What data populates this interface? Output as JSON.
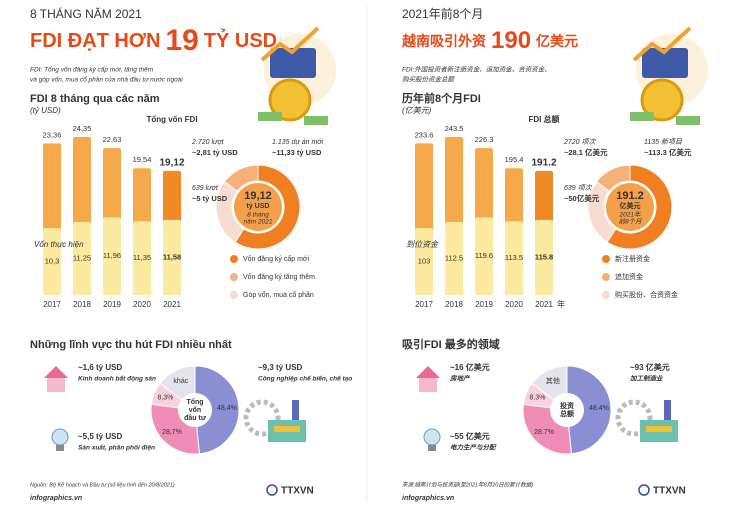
{
  "panels": [
    {
      "kicker": "8 THÁNG NĂM 2021",
      "headline": [
        "FDI ĐẠT HƠN",
        "19",
        "TỶ USD"
      ],
      "note": [
        "FDI: Tổng vốn đăng ký cấp mới, tăng thêm",
        "và góp vốn, mua cổ phần của nhà đầu tư nước ngoài"
      ],
      "bar_chart": {
        "type": "bar",
        "title": "FDI 8 tháng qua các năm",
        "unit": "(tỷ USD)",
        "categories": [
          "2017",
          "2018",
          "2019",
          "2020",
          "2021"
        ],
        "series": [
          {
            "name": "Tổng vốn FDI",
            "color": "#f5a94a",
            "values": [
              23.36,
              24.35,
              22.63,
              19.54,
              19.12
            ],
            "value_labels": [
              "23,36",
              "24,35",
              "22,63",
              "19,54",
              "19,12"
            ]
          },
          {
            "name": "Vốn thực hiện",
            "color": "#fbeaa0",
            "values": [
              10.3,
              11.25,
              11.96,
              11.35,
              11.58
            ],
            "value_labels": [
              "10,3",
              "11,25",
              "11,96",
              "11,35",
              "11,58"
            ]
          }
        ]
      },
      "donut": {
        "type": "pie",
        "categories": [
          "Vốn đăng ký cấp mới",
          "Vốn đăng ký tăng thêm",
          "Góp vốn, mua cổ phần"
        ],
        "colors": [
          "#f07f22",
          "#f7b079",
          "#f9dcd0"
        ],
        "values": [
          11.33,
          2.81,
          5
        ],
        "value_labels": [
          "~11,33 tỷ USD",
          "~2,81 tỷ USD",
          "~5 tỷ USD"
        ],
        "counts": [
          "1.135 dự án mới",
          "2.720 lượt",
          "639 lượt"
        ],
        "center": [
          "19,12",
          "tỷ USD",
          "8 tháng",
          "năm 2021"
        ]
      },
      "sector_chart": {
        "type": "pie",
        "title": "Những lĩnh vực thu hút FDI nhiều nhất",
        "categories": [
          "Công nghiệp chế biến, chế tạo",
          "Sản xuất, phân phối điện",
          "Kinh doanh bất động sản",
          "khác"
        ],
        "colors": [
          "#8a8fd4",
          "#f08db6",
          "#f9d1df",
          "#e4e4ee"
        ],
        "values": [
          48.4,
          28.7,
          8.3,
          14.6
        ],
        "value_labels": [
          "48,4%",
          "28,7%",
          "8,3%",
          null
        ],
        "amounts": [
          "~9,3 tỷ USD",
          "~5,5 tỷ USD",
          "~1,6 tỷ USD",
          null
        ],
        "center": [
          "Tổng",
          "vốn",
          "đầu tư"
        ]
      },
      "source": "Nguồn: Bộ Kế hoạch và Đầu tư (số liệu tính đến 20/8/2021)",
      "site": "infographics.vn",
      "logo": "TTXVN"
    },
    {
      "kicker": "2021年前8个月",
      "headline": [
        "越南吸引外资",
        "190",
        "亿美元"
      ],
      "note": [
        "FDI:外国投资者新注册资金、追加资金、合资资金、",
        "购买股份资金总额"
      ],
      "bar_chart": {
        "type": "bar",
        "title": "历年前8个月FDI",
        "unit": "(亿美元)",
        "categories": [
          "2017",
          "2018",
          "2019",
          "2020",
          "2021"
        ],
        "x_unit": "年",
        "series": [
          {
            "name": "FDI 总额",
            "color": "#f5a94a",
            "values": [
              233.6,
              243.5,
              226.3,
              195.4,
              191.2
            ]
          },
          {
            "name": "到位资金",
            "color": "#fbeaa0",
            "values": [
              103,
              112.5,
              119.6,
              113.5,
              115.8
            ]
          }
        ]
      },
      "donut": {
        "type": "pie",
        "categories": [
          "新注册资金",
          "追加资金",
          "购买股份、合资资金"
        ],
        "colors": [
          "#f07f22",
          "#f7b079",
          "#f9dcd0"
        ],
        "values": [
          113.3,
          28.1,
          50
        ],
        "value_labels": [
          "~113.3 亿美元",
          "~28.1 亿美元",
          "~50亿美元"
        ],
        "counts": [
          "1135 新项目",
          "2720 项次",
          "639 项次"
        ],
        "center": [
          "191.2",
          "亿美元",
          "2021年",
          "前8个月"
        ]
      },
      "sector_chart": {
        "type": "pie",
        "title": "吸引FDI 最多的领域",
        "categories": [
          "加工制造业",
          "电力生产与分配",
          "房地产",
          "其他"
        ],
        "colors": [
          "#8a8fd4",
          "#f08db6",
          "#f9d1df",
          "#e4e4ee"
        ],
        "values": [
          48.4,
          28.7,
          8.3,
          14.6
        ],
        "value_labels": [
          "48.4%",
          "28.7%",
          "8.3%",
          null
        ],
        "amounts": [
          "~93 亿美元",
          "~55 亿美元",
          "~16 亿美元",
          null
        ],
        "center": [
          "投资",
          "总额"
        ]
      },
      "source": "来源:越南计划与投资部(至2021年8月20日的累计数据)",
      "site": "infographics.vn",
      "logo": "TTXVN"
    }
  ]
}
